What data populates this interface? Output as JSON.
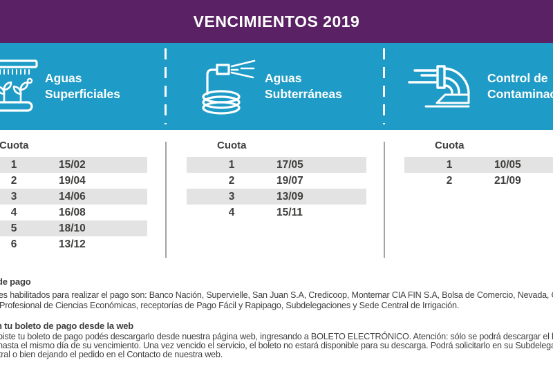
{
  "header": {
    "title": "VENCIMIENTOS 2019"
  },
  "colors": {
    "purple": "#5A2164",
    "teal": "#1E9BC6",
    "row_gray": "#E3E3E3",
    "divider": "#A3A3A3",
    "text": "#3E3E3D"
  },
  "sections": [
    {
      "id": "aguas-superficiales",
      "icon": "irrigation-canal-plants-icon",
      "title_lines": [
        "Aguas",
        "Superficiales"
      ],
      "table": {
        "header": "Cuota",
        "rows": [
          {
            "cuota": "1",
            "fecha": "15/02"
          },
          {
            "cuota": "2",
            "fecha": "19/04"
          },
          {
            "cuota": "3",
            "fecha": "14/06"
          },
          {
            "cuota": "4",
            "fecha": "16/08"
          },
          {
            "cuota": "5",
            "fecha": "18/10"
          },
          {
            "cuota": "6",
            "fecha": "13/12"
          }
        ]
      }
    },
    {
      "id": "aguas-subterraneas",
      "icon": "hose-pump-spray-icon",
      "title_lines": [
        "Aguas",
        "Subterráneas"
      ],
      "table": {
        "header": "Cuota",
        "rows": [
          {
            "cuota": "1",
            "fecha": "17/05"
          },
          {
            "cuota": "2",
            "fecha": "19/07"
          },
          {
            "cuota": "3",
            "fecha": "13/09"
          },
          {
            "cuota": "4",
            "fecha": "15/11"
          }
        ]
      }
    },
    {
      "id": "control-contaminacion",
      "icon": "drain-pipe-icon",
      "title_lines": [
        "Control de",
        "Contaminación"
      ],
      "table": {
        "header": "Cuota",
        "rows": [
          {
            "cuota": "1",
            "fecha": "10/05"
          },
          {
            "cuota": "2",
            "fecha": "21/09"
          }
        ]
      }
    }
  ],
  "notes": [
    {
      "heading": "de pago",
      "lines": [
        "es habilitados para realizar el pago son: Banco Nación, Supervielle, San Juan S.A, Credicoop, Montemar CIA FIN S.A, Bolsa de Comercio, Nevada, Crédito",
        "Profesional de Ciencias Económicas, receptorías de Pago Fácil y Rapipago, Subdelegaciones y Sede Central de Irrigación."
      ]
    },
    {
      "heading": "n tu boleto de pago desde la web",
      "lines": [
        "biste tu boleto de pago podés descargarlo desde nuestra página web, ingresando a BOLETO ELECTRÓNICO. Atención: sólo se podrá descargar el boleto",
        "hasta el mismo día de su vencimiento. Una vez vencido el servicio, el boleto no estará disponible para su descarga. Podrá solicitarlo en su Subdelegación, e",
        "tral o bien dejando el pedido en el Contacto de nuestra web."
      ]
    }
  ]
}
